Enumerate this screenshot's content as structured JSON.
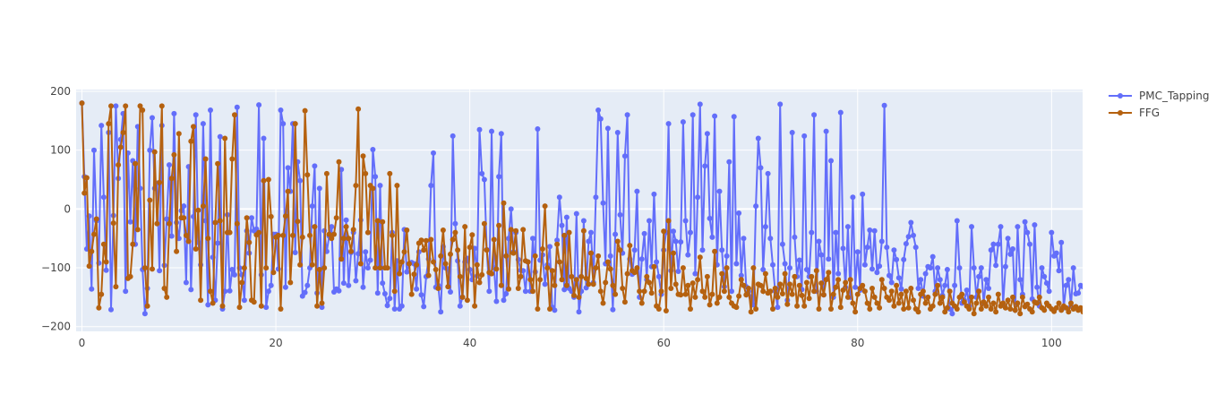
{
  "chart_data": {
    "type": "line",
    "mode": "lines+markers",
    "title": "",
    "xlabel": "",
    "ylabel": "",
    "xlim": [
      -0.6,
      103.2
    ],
    "ylim": [
      -208,
      203
    ],
    "x_ticks": [
      0,
      20,
      40,
      60,
      80,
      100
    ],
    "y_ticks": [
      -200,
      -100,
      0,
      100,
      200
    ],
    "x_tick_labels": [
      "0",
      "20",
      "40",
      "60",
      "80",
      "100"
    ],
    "y_tick_labels": [
      "−200",
      "−100",
      "0",
      "100",
      "200"
    ],
    "plot_background": "#e5ecf6",
    "grid": true,
    "legend_position": "top-right",
    "x_step": 0.25,
    "series": [
      {
        "name": "PMC_Tapping",
        "color": "#636efa",
        "values": [
          180,
          55,
          -68,
          -12,
          -136,
          100,
          -20,
          -92,
          142,
          20,
          -104,
          130,
          -171,
          -11,
          175,
          52,
          118,
          162,
          -140,
          95,
          -22,
          82,
          -60,
          140,
          35,
          -103,
          -178,
          -135,
          100,
          155,
          35,
          44,
          -105,
          142,
          -96,
          -17,
          75,
          -46,
          162,
          -23,
          -50,
          -3,
          5,
          -125,
          72,
          -137,
          -13,
          160,
          -57,
          -95,
          145,
          -20,
          -163,
          168,
          -82,
          -155,
          -58,
          123,
          -170,
          -140,
          -10,
          -139,
          -103,
          -112,
          173,
          -100,
          -112,
          -155,
          -37,
          -75,
          -15,
          -37,
          -34,
          177,
          -112,
          120,
          -167,
          -140,
          -130,
          -43,
          -43,
          -102,
          168,
          145,
          -133,
          70,
          30,
          145,
          -74,
          80,
          48,
          -148,
          -142,
          -130,
          -100,
          5,
          73,
          -143,
          35,
          -167,
          -37,
          -72,
          -46,
          -30,
          -141,
          -136,
          -139,
          67,
          -126,
          -19,
          -130,
          -74,
          -40,
          -122,
          -76,
          -19,
          -133,
          -73,
          -100,
          -87,
          101,
          55,
          -143,
          40,
          -126,
          -144,
          -164,
          -152,
          -40,
          -170,
          -88,
          -170,
          -165,
          -35,
          -107,
          -93,
          -91,
          -93,
          -136,
          -73,
          -146,
          -166,
          -115,
          -85,
          40,
          95,
          -133,
          -130,
          -175,
          -64,
          -100,
          -102,
          -141,
          124,
          -25,
          -88,
          -165,
          -150,
          -90,
          -84,
          -103,
          -120,
          -67,
          -114,
          135,
          60,
          50,
          -69,
          -140,
          132,
          -100,
          -157,
          55,
          128,
          -155,
          -144,
          -50,
          0,
          -73,
          -40,
          -86,
          -104,
          -105,
          -140,
          -90,
          -140,
          -50,
          -107,
          136,
          -87,
          -78,
          -128,
          -95,
          -64,
          -167,
          -172,
          -53,
          20,
          -28,
          -137,
          -14,
          -135,
          -140,
          -150,
          -8,
          -175,
          -140,
          -20,
          -134,
          -55,
          -40,
          -125,
          20,
          168,
          153,
          10,
          -93,
          137,
          -80,
          -171,
          -43,
          130,
          -10,
          -75,
          90,
          160,
          -85,
          -111,
          -70,
          30,
          -150,
          -85,
          -42,
          -120,
          -20,
          -98,
          25,
          -90,
          -115,
          -145,
          -70,
          -40,
          145,
          -105,
          -38,
          -55,
          -106,
          -56,
          148,
          -20,
          -78,
          -40,
          160,
          -110,
          20,
          178,
          -70,
          73,
          128,
          -16,
          -48,
          158,
          -95,
          30,
          -70,
          -132,
          -80,
          80,
          -140,
          157,
          -93,
          -7,
          -113,
          -50,
          -132,
          -140,
          -150,
          -163,
          5,
          120,
          70,
          -103,
          -30,
          60,
          -50,
          -95,
          -140,
          -167,
          178,
          -60,
          -93,
          -155,
          -100,
          130,
          -48,
          -115,
          -87,
          -137,
          124,
          -103,
          -115,
          -40,
          160,
          -140,
          -55,
          -78,
          -146,
          132,
          -85,
          82,
          -150,
          -40,
          -110,
          164,
          -67,
          -133,
          -30,
          -150,
          20,
          -133,
          -73,
          -138,
          25,
          -95,
          -65,
          -36,
          -102,
          -37,
          -108,
          -97,
          -55,
          176,
          -65,
          -113,
          -125,
          -70,
          -86,
          -117,
          -136,
          -86,
          -59,
          -47,
          -23,
          -45,
          -65,
          -135,
          -120,
          -148,
          -110,
          -98,
          -100,
          -81,
          -140,
          -100,
          -120,
          -147,
          -130,
          -103,
          -170,
          -178,
          -130,
          -20,
          -100,
          -160,
          -155,
          -138,
          -165,
          -30,
          -100,
          -150,
          -115,
          -100,
          -160,
          -120,
          -135,
          -70,
          -60,
          -96,
          -60,
          -30,
          -162,
          -98,
          -50,
          -77,
          -68,
          -172,
          -30,
          -120,
          -145,
          -22,
          -40,
          -60,
          -153,
          -27,
          -133,
          -165,
          -100,
          -115,
          -126,
          -140,
          -40,
          -80,
          -75,
          -105,
          -57,
          -168,
          -130,
          -120,
          -165,
          -100,
          -144,
          -143,
          -130,
          -132,
          -125,
          -107,
          -170,
          -100,
          -130,
          -132,
          -147,
          -140,
          -160,
          -130,
          -150,
          -140,
          -158,
          -162,
          -63,
          -112,
          -95,
          -130,
          -150,
          -148,
          -123,
          -63,
          -58,
          -143,
          -157,
          -163,
          -163,
          -140,
          -175,
          -177,
          -178,
          -160,
          -62,
          -130,
          -143,
          -48,
          -155,
          -118,
          -53,
          -173,
          -160,
          -120,
          -160,
          -175,
          -100,
          -110,
          -112,
          -100,
          -175,
          -160,
          -160,
          -162,
          -160,
          -130,
          -120,
          -100,
          -50,
          -77,
          -76
        ]
      },
      {
        "name": "FFG",
        "color": "#b5610f",
        "values": [
          180,
          27,
          53,
          -97,
          -72,
          -43,
          -17,
          -168,
          -145,
          -60,
          -90,
          145,
          175,
          -24,
          -132,
          75,
          105,
          130,
          175,
          -118,
          -115,
          -60,
          77,
          -35,
          175,
          168,
          -100,
          -165,
          15,
          -102,
          97,
          -25,
          45,
          175,
          -135,
          -150,
          -25,
          52,
          92,
          -72,
          128,
          -15,
          -15,
          -45,
          -55,
          115,
          140,
          -68,
          -2,
          -155,
          5,
          85,
          -50,
          -140,
          -160,
          -23,
          77,
          -20,
          -165,
          120,
          -40,
          -40,
          85,
          160,
          -25,
          -167,
          -125,
          -100,
          -15,
          -57,
          -155,
          -158,
          -44,
          -40,
          -165,
          48,
          -100,
          50,
          -13,
          -108,
          -48,
          -45,
          -170,
          -45,
          -12,
          30,
          -125,
          -45,
          145,
          -21,
          -95,
          -48,
          167,
          58,
          -45,
          -95,
          -30,
          -165,
          -103,
          -160,
          -100,
          60,
          -43,
          -50,
          -43,
          -15,
          80,
          -85,
          -50,
          -30,
          -50,
          -72,
          -35,
          40,
          170,
          -93,
          90,
          60,
          -40,
          40,
          35,
          -100,
          -20,
          -100,
          -22,
          -100,
          -100,
          60,
          -45,
          -140,
          40,
          -110,
          -90,
          -73,
          -36,
          -93,
          -145,
          -111,
          -95,
          -58,
          -53,
          -70,
          -54,
          -113,
          -52,
          -90,
          -103,
          -135,
          -80,
          -36,
          -93,
          -132,
          -77,
          -52,
          -40,
          -70,
          -115,
          -150,
          -30,
          -155,
          -65,
          -44,
          -165,
          -95,
          -125,
          -112,
          -25,
          -70,
          -108,
          -110,
          -52,
          -102,
          -28,
          -130,
          10,
          -80,
          -136,
          -35,
          -75,
          -37,
          -135,
          -115,
          -35,
          -88,
          -90,
          -120,
          -140,
          -80,
          -170,
          -120,
          -68,
          5,
          -100,
          -170,
          -105,
          -130,
          -60,
          -90,
          -120,
          -45,
          -130,
          -40,
          -115,
          -147,
          -120,
          -150,
          -115,
          -37,
          -118,
          -128,
          -75,
          -128,
          -100,
          -80,
          -140,
          -160,
          -125,
          -90,
          -102,
          -130,
          -145,
          -55,
          -70,
          -135,
          -158,
          -110,
          -62,
          -105,
          -108,
          -100,
          -140,
          -160,
          -140,
          -115,
          -125,
          -143,
          -98,
          -165,
          -170,
          -140,
          -38,
          -173,
          -20,
          -135,
          -75,
          -128,
          -145,
          -146,
          -100,
          -145,
          -130,
          -170,
          -126,
          -150,
          -120,
          -82,
          -140,
          -150,
          -115,
          -163,
          -145,
          -72,
          -160,
          -150,
          -110,
          -140,
          -100,
          -150,
          -160,
          -165,
          -167,
          -148,
          -120,
          -130,
          -146,
          -135,
          -175,
          -100,
          -170,
          -128,
          -130,
          -140,
          -110,
          -143,
          -140,
          -170,
          -135,
          -150,
          -128,
          -144,
          -110,
          -162,
          -128,
          -145,
          -115,
          -165,
          -130,
          -147,
          -165,
          -125,
          -152,
          -115,
          -140,
          -105,
          -170,
          -126,
          -146,
          -120,
          -108,
          -170,
          -145,
          -133,
          -120,
          -167,
          -138,
          -125,
          -150,
          -120,
          -160,
          -175,
          -145,
          -135,
          -130,
          -140,
          -160,
          -170,
          -135,
          -150,
          -160,
          -168,
          -120,
          -135,
          -150,
          -155,
          -140,
          -165,
          -130,
          -160,
          -145,
          -170,
          -140,
          -168,
          -135,
          -155,
          -170,
          -175,
          -145,
          -140,
          -160,
          -150,
          -170,
          -165,
          -145,
          -130,
          -160,
          -150,
          -175,
          -168,
          -140,
          -160,
          -165,
          -170,
          -150,
          -145,
          -158,
          -165,
          -170,
          -150,
          -178,
          -160,
          -140,
          -170,
          -158,
          -165,
          -150,
          -170,
          -160,
          -175,
          -145,
          -165,
          -160,
          -168,
          -155,
          -170,
          -150,
          -172,
          -160,
          -178,
          -150,
          -166,
          -162,
          -170,
          -175,
          -158,
          -160,
          -150,
          -168,
          -172,
          -160,
          -165,
          -170,
          -174,
          -168,
          -160,
          -172,
          -165,
          -168,
          -175,
          -160,
          -170,
          -166,
          -172,
          -168,
          -175,
          -165,
          -170,
          -160,
          -168,
          -173,
          -170,
          -166,
          -170,
          -172,
          -168,
          -170,
          -174,
          -170,
          -176,
          -170,
          -172,
          -168,
          -175,
          -172,
          -170,
          -174,
          -176,
          -172,
          -175,
          -170,
          -174,
          -172,
          -176,
          -175,
          -173,
          -170,
          -175,
          -177,
          -174,
          -176,
          -175,
          -178,
          -177,
          -175,
          -176,
          -178,
          -177,
          -176,
          -178,
          -177,
          -178,
          -176,
          -178,
          -177,
          -178,
          -176,
          -178,
          -177,
          -178
        ]
      }
    ]
  }
}
